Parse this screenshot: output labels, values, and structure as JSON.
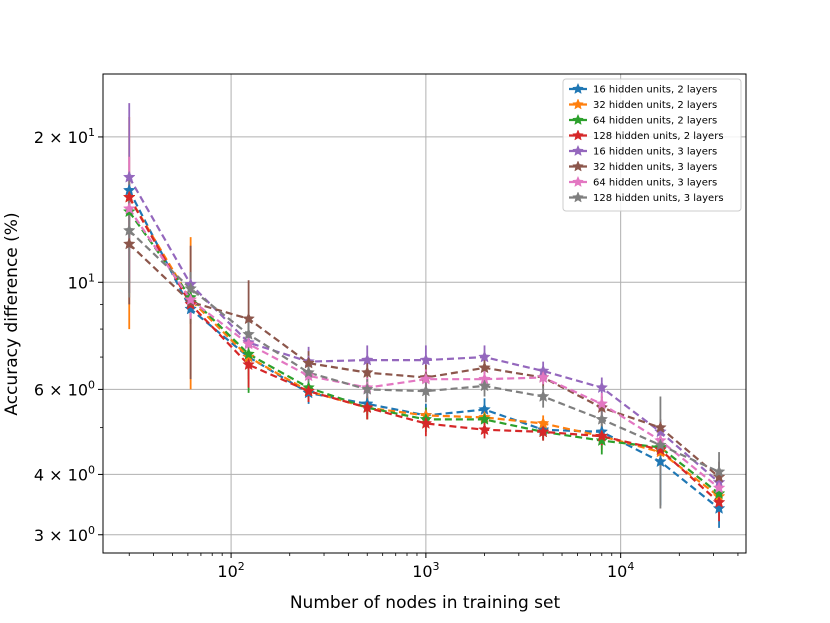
{
  "chart_data": {
    "type": "line",
    "title": "",
    "xlabel": "Number of nodes in training set",
    "ylabel": "Accuracy difference (%)",
    "xscale": "log",
    "yscale": "log",
    "xlim": [
      22,
      44000
    ],
    "ylim": [
      2.75,
      27
    ],
    "x": [
      30,
      62,
      123,
      250,
      500,
      1000,
      2000,
      4000,
      8000,
      16000,
      32000
    ],
    "x_ticks": [
      {
        "value": 100,
        "base": "10",
        "exp": "2"
      },
      {
        "value": 1000,
        "base": "10",
        "exp": "3"
      },
      {
        "value": 10000,
        "base": "10",
        "exp": "4"
      }
    ],
    "y_ticks": [
      {
        "value": 3,
        "label": "3 × 10",
        "exp": "0"
      },
      {
        "value": 4,
        "label": "4 × 10",
        "exp": "0"
      },
      {
        "value": 6,
        "label": "6 × 10",
        "exp": "0"
      },
      {
        "value": 10,
        "label": "10",
        "exp": "1"
      },
      {
        "value": 20,
        "label": "2 × 10",
        "exp": "1"
      }
    ],
    "grid": true,
    "legend_position": "top-right",
    "series": [
      {
        "name": "16 hidden units, 2 layers",
        "color": "#1f77b4",
        "linestyle": "dashed",
        "values": [
          15.5,
          8.8,
          7.0,
          5.9,
          5.6,
          5.3,
          5.45,
          4.95,
          4.9,
          4.25,
          3.4
        ],
        "errors": [
          1.4,
          0.6,
          0.6,
          0.3,
          0.3,
          0.3,
          0.3,
          0.2,
          0.2,
          0.8,
          0.3
        ]
      },
      {
        "name": "32 hidden units, 2 layers",
        "color": "#ff7f0e",
        "linestyle": "dashed",
        "values": [
          15.0,
          9.2,
          7.0,
          5.95,
          5.5,
          5.3,
          5.25,
          5.1,
          4.8,
          4.45,
          3.6
        ],
        "errors": [
          7.0,
          3.2,
          0.7,
          0.3,
          0.3,
          0.2,
          0.2,
          0.2,
          0.3,
          0.3,
          0.3
        ]
      },
      {
        "name": "64 hidden units, 2 layers",
        "color": "#2ca02c",
        "linestyle": "dashed",
        "values": [
          14.0,
          9.3,
          7.1,
          6.05,
          5.5,
          5.2,
          5.2,
          4.9,
          4.7,
          4.55,
          3.65
        ],
        "errors": [
          1.5,
          0.6,
          1.2,
          0.3,
          0.3,
          0.3,
          0.3,
          0.2,
          0.3,
          0.2,
          0.3
        ]
      },
      {
        "name": "128 hidden units, 2 layers",
        "color": "#d62728",
        "linestyle": "dashed",
        "values": [
          15.0,
          9.0,
          6.75,
          5.95,
          5.5,
          5.1,
          4.95,
          4.9,
          4.8,
          4.5,
          3.5
        ],
        "errors": [
          1.0,
          0.6,
          0.7,
          0.3,
          0.3,
          0.3,
          0.2,
          0.2,
          0.2,
          0.3,
          0.3
        ]
      },
      {
        "name": "16 hidden units, 3 layers",
        "color": "#9467bd",
        "linestyle": "dashed",
        "values": [
          16.5,
          9.9,
          7.5,
          6.85,
          6.9,
          6.9,
          7.0,
          6.55,
          6.05,
          4.9,
          3.85
        ],
        "errors": [
          7.0,
          0.6,
          0.4,
          0.5,
          0.5,
          0.5,
          0.4,
          0.3,
          0.3,
          0.3,
          0.3
        ]
      },
      {
        "name": "32 hidden units, 3 layers",
        "color": "#8c564b",
        "linestyle": "dashed",
        "values": [
          12.0,
          9.1,
          8.4,
          6.8,
          6.5,
          6.35,
          6.65,
          6.35,
          5.5,
          5.0,
          3.95
        ],
        "errors": [
          3.0,
          2.8,
          1.7,
          0.4,
          0.4,
          0.4,
          0.4,
          0.3,
          0.3,
          0.2,
          0.3
        ]
      },
      {
        "name": "64 hidden units, 3 layers",
        "color": "#e377c2",
        "linestyle": "dashed",
        "values": [
          14.2,
          9.2,
          7.45,
          6.4,
          6.05,
          6.3,
          6.3,
          6.35,
          5.6,
          4.7,
          3.75
        ],
        "errors": [
          4.0,
          0.8,
          0.5,
          0.3,
          0.3,
          0.3,
          0.3,
          0.2,
          0.3,
          0.3,
          0.3
        ]
      },
      {
        "name": "128 hidden units, 3 layers",
        "color": "#7f7f7f",
        "linestyle": "dashed",
        "values": [
          12.8,
          9.7,
          7.8,
          6.5,
          6.0,
          5.95,
          6.1,
          5.8,
          5.2,
          4.6,
          4.05
        ],
        "errors": [
          3.5,
          0.8,
          0.5,
          0.3,
          0.3,
          0.3,
          0.3,
          0.3,
          0.3,
          1.2,
          0.4
        ]
      }
    ]
  }
}
